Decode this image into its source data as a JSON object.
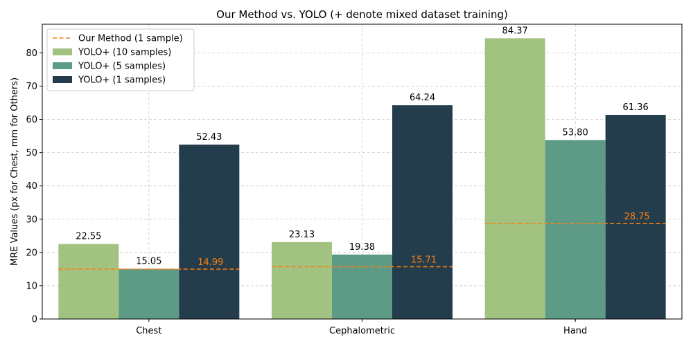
{
  "chart_data": {
    "type": "bar",
    "title": "Our Method vs. YOLO (+ denote mixed dataset training)",
    "xlabel": "",
    "ylabel": "MRE Values (px for Chest, mm for Others)",
    "categories": [
      "Chest",
      "Cephalometric",
      "Hand"
    ],
    "ylim": [
      0,
      88.6
    ],
    "yticks": [
      "0",
      "10",
      "20",
      "30",
      "40",
      "50",
      "60",
      "70",
      "80"
    ],
    "grid": true,
    "legend_position": "top-left",
    "series": [
      {
        "name": "YOLO+ (10 samples)",
        "values": [
          22.55,
          23.13,
          84.37
        ],
        "labels": [
          "22.55",
          "23.13",
          "84.37"
        ],
        "color": "#a1c281"
      },
      {
        "name": "YOLO+ (5 samples)",
        "values": [
          15.05,
          19.38,
          53.8
        ],
        "labels": [
          "15.05",
          "19.38",
          "53.80"
        ],
        "color": "#5d9b87"
      },
      {
        "name": "YOLO+ (1 samples)",
        "values": [
          52.43,
          64.24,
          61.36
        ],
        "labels": [
          "52.43",
          "64.24",
          "61.36"
        ],
        "color": "#243d4c"
      }
    ],
    "reference_lines": {
      "name": "Our Method (1 sample)",
      "values": [
        14.99,
        15.71,
        28.75
      ],
      "labels": [
        "14.99",
        "15.71",
        "28.75"
      ],
      "color": "#ff7f0e",
      "style": "dashed"
    }
  }
}
